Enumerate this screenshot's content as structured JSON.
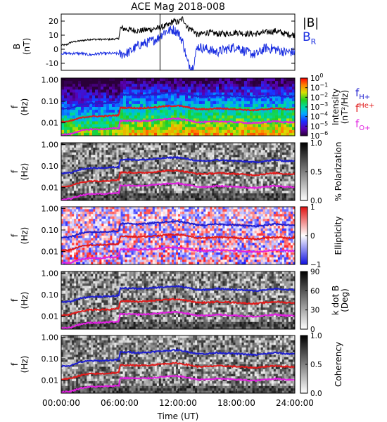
{
  "title": "ACE Mag 2018-008",
  "x_axis": {
    "label": "Time (UT)",
    "ticks": [
      "00:00:00",
      "06:00:00",
      "12:00:00",
      "18:00:00",
      "24:00:00"
    ],
    "range_hours": [
      0,
      24
    ]
  },
  "freq_axis": {
    "label_line1": "f",
    "label_line2": "(Hz)",
    "ticks": [
      "1.00",
      "0.10",
      "0.01"
    ],
    "scale": "log",
    "range_hz": [
      0.0025,
      1.2
    ]
  },
  "legend": {
    "fH": {
      "base": "f",
      "sub": "H+",
      "color": "#1f1fcf"
    },
    "fHe": {
      "base": "f",
      "sub": "He+",
      "color": "#e01b1b"
    },
    "fO": {
      "base": "f",
      "sub": "O+",
      "color": "#e020e0"
    }
  },
  "colors": {
    "B_total": "#000000",
    "B_R": "#1a2ee0",
    "fH_line": "#1f1fcf",
    "fHe_line": "#e01b1b",
    "fO_line": "#e020e0"
  },
  "panels": [
    {
      "id": "mag",
      "ylabel_line1": "B",
      "ylabel_line2": "(nT)",
      "yticks": [
        "20",
        "10",
        "0",
        "-10"
      ],
      "legend_total": "|B|",
      "legend_r_base": "B",
      "legend_r_sub": "R"
    },
    {
      "id": "intensity",
      "cbar_label_line1": "Intensity",
      "cbar_label_line2": "(nT²/Hz)",
      "cbar_ticks": [
        {
          "base": "10",
          "exp": "0"
        },
        {
          "base": "10",
          "exp": "−1"
        },
        {
          "base": "10",
          "exp": "−2"
        },
        {
          "base": "10",
          "exp": "−3"
        },
        {
          "base": "10",
          "exp": "−4"
        },
        {
          "base": "10",
          "exp": "−5"
        },
        {
          "base": "10",
          "exp": "−6"
        }
      ]
    },
    {
      "id": "polarization",
      "cbar_label": "% Polarization",
      "cbar_ticks": [
        "1.0",
        "0.5",
        "0.0"
      ]
    },
    {
      "id": "ellipticity",
      "cbar_label": "Ellipticity",
      "cbar_ticks": [
        "1",
        "0",
        "−1"
      ]
    },
    {
      "id": "kdotb",
      "cbar_label_line1": "k dot B",
      "cbar_label_line2": "(Deg)",
      "cbar_ticks": [
        "90",
        "60",
        "30",
        "0"
      ]
    },
    {
      "id": "coherency",
      "cbar_label": "Coherency",
      "cbar_ticks": [
        "1.0",
        "0.5",
        "0.0"
      ]
    }
  ],
  "chart_data": {
    "type": "line",
    "title": "ACE Mag 2018-008",
    "xlabel": "Time (UT)",
    "xlim_hours": [
      0,
      24
    ],
    "magnetic_field": {
      "ylabel": "B (nT)",
      "ylim": [
        -15,
        25
      ],
      "x_hours": [
        0,
        0.5,
        1,
        2,
        3,
        4,
        5,
        5.9,
        6.1,
        7,
        8,
        9,
        10,
        10.5,
        11,
        11.5,
        12,
        12.5,
        13,
        13.5,
        14,
        15,
        16,
        17,
        18,
        19,
        20,
        21,
        22,
        23,
        24
      ],
      "series": [
        {
          "name": "|B|",
          "values": [
            3,
            3,
            5,
            6,
            7,
            7,
            7,
            7.5,
            15,
            14,
            13,
            14,
            15,
            16,
            17,
            20,
            19,
            22,
            15,
            14,
            10,
            12,
            11,
            11,
            12,
            11,
            11,
            12,
            13,
            11,
            10
          ]
        },
        {
          "name": "B_R",
          "values": [
            -3,
            -3,
            -3,
            -3,
            -4,
            -3,
            -3,
            -3,
            -4,
            -2,
            3,
            5,
            8,
            12,
            13,
            14,
            12,
            5,
            -10,
            -13,
            2,
            0,
            -2,
            0,
            2,
            -2,
            -4,
            1,
            0,
            -2,
            -2
          ]
        }
      ]
    },
    "gyrofrequency_lines_hz": {
      "x_hours": [
        0,
        1,
        2,
        3,
        4,
        5,
        5.95,
        6.05,
        7,
        8,
        9,
        10,
        11,
        12,
        13,
        14,
        15,
        16,
        17,
        18,
        19,
        20,
        21,
        22,
        23,
        24
      ],
      "series": [
        {
          "name": "fH+",
          "values": [
            0.045,
            0.048,
            0.07,
            0.08,
            0.08,
            0.085,
            0.09,
            0.2,
            0.2,
            0.19,
            0.2,
            0.22,
            0.24,
            0.25,
            0.21,
            0.17,
            0.17,
            0.19,
            0.18,
            0.17,
            0.16,
            0.15,
            0.17,
            0.19,
            0.17,
            0.17
          ]
        },
        {
          "name": "fHe+",
          "values": [
            0.011,
            0.012,
            0.017,
            0.02,
            0.02,
            0.021,
            0.023,
            0.05,
            0.05,
            0.048,
            0.05,
            0.055,
            0.06,
            0.062,
            0.052,
            0.043,
            0.043,
            0.047,
            0.045,
            0.043,
            0.04,
            0.038,
            0.043,
            0.047,
            0.043,
            0.042
          ]
        },
        {
          "name": "fO+",
          "values": [
            0.0028,
            0.003,
            0.0043,
            0.005,
            0.005,
            0.0053,
            0.0057,
            0.0125,
            0.0125,
            0.012,
            0.0125,
            0.0138,
            0.015,
            0.0155,
            0.013,
            0.0108,
            0.0108,
            0.0118,
            0.0113,
            0.0108,
            0.01,
            0.0095,
            0.0108,
            0.0118,
            0.0108,
            0.0105
          ]
        }
      ]
    },
    "spectrogram_panels": [
      {
        "name": "Intensity (nT²/Hz)",
        "colorscale": "rainbow",
        "range": [
          1e-06,
          1
        ]
      },
      {
        "name": "% Polarization",
        "colorscale": "grayscale",
        "range": [
          0,
          1
        ]
      },
      {
        "name": "Ellipticity",
        "colorscale": "blue-white-red",
        "range": [
          -1,
          1
        ]
      },
      {
        "name": "k dot B (Deg)",
        "colorscale": "grayscale",
        "range": [
          0,
          90
        ]
      },
      {
        "name": "Coherency",
        "colorscale": "grayscale",
        "range": [
          0,
          1
        ]
      }
    ]
  }
}
